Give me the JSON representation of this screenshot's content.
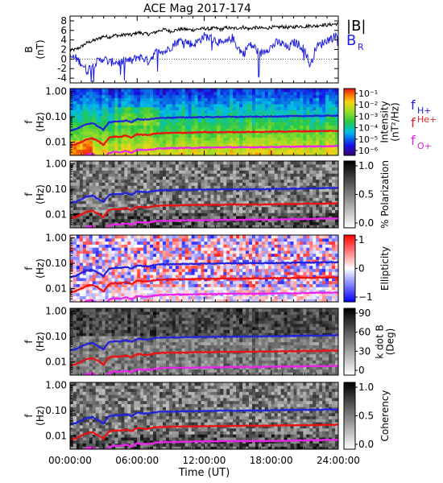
{
  "title": "ACE Mag 2017-174",
  "chart_data": [
    {
      "type": "line",
      "panel": "magnetic-field",
      "ylabel": "B",
      "yunit": "(nT)",
      "ylim": [
        -5,
        9
      ],
      "yticks": [
        -4,
        -2,
        0,
        2,
        4,
        6,
        8
      ],
      "series": [
        {
          "name": "|B|",
          "color": "#000000",
          "x": [
            0,
            0.5,
            1.0,
            1.5,
            2.0,
            2.5,
            3.0,
            3.5,
            4.0,
            4.5,
            5.0,
            5.5,
            6.0,
            6.5,
            7.0,
            7.5,
            8.0,
            8.5,
            9.0,
            9.5,
            10.0,
            10.5,
            11.0,
            11.5,
            12.0,
            12.5,
            13.0,
            13.5,
            14.0,
            14.5,
            15.0,
            15.5,
            16.0,
            16.5,
            17.0,
            17.5,
            18.0,
            18.5,
            19.0,
            19.5,
            20.0,
            20.5,
            21.0,
            21.5,
            22.0,
            22.5,
            23.0,
            23.5,
            24.0
          ],
          "values": [
            1.8,
            2.0,
            2.6,
            3.4,
            3.8,
            4.2,
            4.8,
            4.6,
            5.0,
            4.9,
            5.2,
            5.0,
            5.6,
            5.4,
            5.2,
            5.5,
            6.0,
            6.2,
            5.8,
            6.1,
            6.3,
            6.2,
            6.1,
            6.3,
            6.4,
            6.3,
            6.5,
            6.2,
            6.6,
            6.4,
            6.5,
            6.7,
            6.3,
            6.6,
            6.5,
            6.4,
            6.7,
            6.6,
            6.8,
            6.6,
            6.7,
            6.9,
            6.8,
            7.0,
            6.9,
            7.2,
            7.1,
            7.3,
            7.4
          ]
        },
        {
          "name": "B_R",
          "color": "#2222dd",
          "x": [
            0,
            0.5,
            1.0,
            1.5,
            2.0,
            2.5,
            3.0,
            3.5,
            4.0,
            4.5,
            5.0,
            5.5,
            6.0,
            6.5,
            7.0,
            7.5,
            8.0,
            8.5,
            9.0,
            9.5,
            10.0,
            10.5,
            11.0,
            11.5,
            12.0,
            12.5,
            13.0,
            13.5,
            14.0,
            14.5,
            15.0,
            15.5,
            16.0,
            16.5,
            17.0,
            17.5,
            18.0,
            18.5,
            19.0,
            19.5,
            20.0,
            20.5,
            21.0,
            21.5,
            22.0,
            22.5,
            23.0,
            23.5,
            24.0
          ],
          "values": [
            0.5,
            0.2,
            -0.8,
            -2.5,
            -1.2,
            -0.5,
            0.2,
            -0.8,
            -0.5,
            -0.8,
            -0.2,
            -0.5,
            0.5,
            0.3,
            -0.5,
            1.0,
            2.0,
            1.5,
            2.5,
            3.5,
            4.0,
            3.5,
            3.0,
            3.8,
            4.8,
            4.5,
            4.0,
            3.2,
            3.5,
            4.5,
            2.5,
            1.0,
            3.0,
            2.5,
            1.0,
            2.0,
            2.5,
            3.5,
            3.2,
            2.2,
            3.5,
            3.0,
            2.0,
            -1.5,
            2.5,
            3.2,
            4.0,
            4.5,
            5.2
          ]
        }
      ],
      "legend": [
        "|B|",
        "B",
        "R"
      ]
    },
    {
      "type": "heatmap",
      "panel": "intensity",
      "ylabel": "f",
      "yunit": "(Hz)",
      "yscale": "log",
      "yticks": [
        "1.00",
        "0.10",
        "0.01"
      ],
      "colorbar": {
        "label_lines": [
          "Intensity",
          "(nT²/Hz)"
        ],
        "ticks": [
          "10⁻¹",
          "10⁻²",
          "10⁻³",
          "10⁻⁴",
          "10⁻⁵",
          "10⁻⁶"
        ],
        "colormap": "rainbow"
      },
      "legend": [
        {
          "name": "f",
          "sub": "H+",
          "color": "#2222dd"
        },
        {
          "name": "f",
          "sub": "He+",
          "color": "#dd2222"
        },
        {
          "name": "f",
          "sub": "O+",
          "color": "#dd22dd"
        }
      ]
    },
    {
      "type": "heatmap",
      "panel": "polarization",
      "ylabel": "f",
      "yunit": "(Hz)",
      "yscale": "log",
      "yticks": [
        "1.00",
        "0.10",
        "0.01"
      ],
      "colorbar": {
        "label_lines": [
          "% Polarization"
        ],
        "ticks": [
          "1.0",
          "0.5",
          "0.0"
        ],
        "colormap": "gray-reversed"
      }
    },
    {
      "type": "heatmap",
      "panel": "ellipticity",
      "ylabel": "f",
      "yunit": "(Hz)",
      "yscale": "log",
      "yticks": [
        "1.00",
        "0.10",
        "0.01"
      ],
      "colorbar": {
        "label_lines": [
          "Ellipticity"
        ],
        "ticks": [
          "1",
          "0",
          "−1"
        ],
        "colormap": "red-white-blue"
      }
    },
    {
      "type": "heatmap",
      "panel": "k-dot-b",
      "ylabel": "f",
      "yunit": "(Hz)",
      "yscale": "log",
      "yticks": [
        "1.00",
        "0.10",
        "0.01"
      ],
      "colorbar": {
        "label_lines": [
          "k dot B",
          "(Deg)"
        ],
        "ticks": [
          "90",
          "60",
          "30",
          "0"
        ],
        "colormap": "gray-reversed"
      }
    },
    {
      "type": "heatmap",
      "panel": "coherency",
      "ylabel": "f",
      "yunit": "(Hz)",
      "yscale": "log",
      "yticks": [
        "1.00",
        "0.10",
        "0.01"
      ],
      "colorbar": {
        "label_lines": [
          "Coherency"
        ],
        "ticks": [
          "1.0",
          "0.5",
          "0.0"
        ],
        "colormap": "gray-reversed"
      }
    }
  ],
  "gyrofrequency": {
    "x": [
      0,
      0.5,
      1.0,
      1.5,
      2.0,
      2.5,
      3.0,
      3.5,
      4.0,
      4.5,
      5.0,
      5.5,
      6.0,
      6.5,
      7.0,
      7.5,
      8.0,
      9.0,
      10.0,
      11.0,
      12.0,
      13.0,
      14.0,
      15.0,
      16.0,
      17.0,
      18.0,
      19.0,
      20.0,
      21.0,
      22.0,
      23.0,
      24.0
    ],
    "fH": [
      0.028,
      0.032,
      0.04,
      0.052,
      0.056,
      0.042,
      0.03,
      0.06,
      0.066,
      0.064,
      0.072,
      0.06,
      0.082,
      0.078,
      0.076,
      0.085,
      0.09,
      0.092,
      0.094,
      0.095,
      0.098,
      0.097,
      0.1,
      0.099,
      0.101,
      0.1,
      0.103,
      0.104,
      0.106,
      0.107,
      0.108,
      0.11,
      0.112
    ],
    "fHe": [
      0.007,
      0.008,
      0.01,
      0.013,
      0.014,
      0.011,
      0.0075,
      0.015,
      0.0165,
      0.016,
      0.018,
      0.015,
      0.0205,
      0.0195,
      0.019,
      0.0212,
      0.0225,
      0.023,
      0.0235,
      0.0238,
      0.0245,
      0.0243,
      0.025,
      0.0248,
      0.0253,
      0.025,
      0.0258,
      0.026,
      0.0265,
      0.0268,
      0.027,
      0.0275,
      0.028
    ],
    "fO": [
      0.0018,
      0.002,
      0.0025,
      0.0033,
      0.0035,
      0.0026,
      0.0019,
      0.0038,
      0.0041,
      0.004,
      0.0045,
      0.0038,
      0.0051,
      0.0049,
      0.0048,
      0.0053,
      0.0056,
      0.0058,
      0.0059,
      0.0059,
      0.0061,
      0.0061,
      0.0063,
      0.0062,
      0.0063,
      0.0063,
      0.0064,
      0.0065,
      0.0066,
      0.0067,
      0.0068,
      0.0069,
      0.007
    ]
  },
  "xaxis": {
    "label": "Time (UT)",
    "range": [
      0,
      24
    ],
    "tick_hours": [
      0,
      6,
      12,
      18,
      24
    ],
    "tick_labels": [
      "00:00:00",
      "06:00:00",
      "12:00:00",
      "18:00:00",
      "24:00:00"
    ]
  }
}
